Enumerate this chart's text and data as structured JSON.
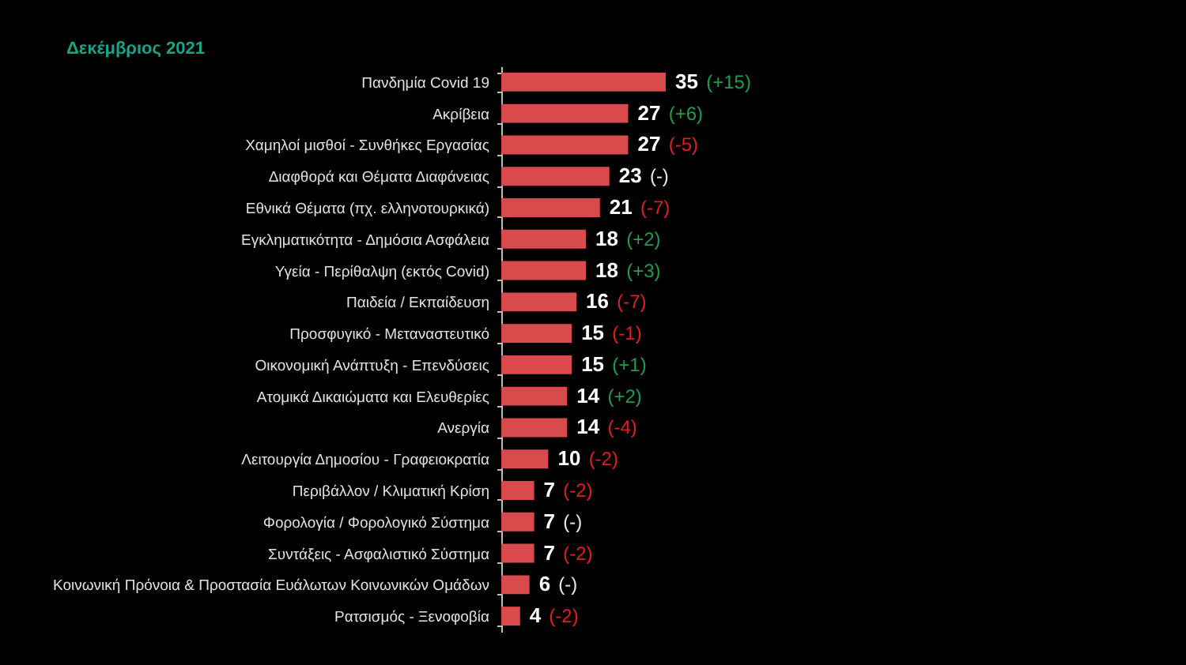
{
  "chart_data": {
    "type": "bar",
    "orientation": "horizontal",
    "title": "Δεκέμβριος 2021",
    "categories": [
      "Πανδημία Covid 19",
      "Ακρίβεια",
      "Χαμηλοί μισθοί - Συνθήκες Εργασίας",
      "Διαφθορά και Θέματα Διαφάνειας",
      "Εθνικά Θέματα (πχ. ελληνοτουρκικά)",
      "Εγκληματικότητα - Δημόσια Ασφάλεια",
      "Υγεία - Περίθαλψη (εκτός Covid)",
      "Παιδεία / Εκπαίδευση",
      "Προσφυγικό - Μεταναστευτικό",
      "Οικονομική Ανάπτυξη - Επενδύσεις",
      "Ατομικά Δικαιώματα και Ελευθερίες",
      "Ανεργία",
      "Λειτουργία Δημοσίου - Γραφειοκρατία",
      "Περιβάλλον / Κλιματική Κρίση",
      "Φορολογία / Φορολογικό Σύστημα",
      "Συντάξεις - Ασφαλιστικό Σύστημα",
      "Κοινωνική Πρόνοια & Προστασία Ευάλωτων Κοινωνικών Ομάδων",
      "Ρατσισμός - Ξενοφοβία"
    ],
    "values": [
      35,
      27,
      27,
      23,
      21,
      18,
      18,
      16,
      15,
      15,
      14,
      14,
      10,
      7,
      7,
      7,
      6,
      4
    ],
    "color": "#d94a4d",
    "data_labels": true,
    "tick_labels": "y",
    "annotations": [
      {
        "text": "(-2)",
        "x": 4,
        "y": "Ρατσισμός - Ξενοφοβία"
      },
      {
        "text": "(-)",
        "x": 6,
        "y": "Κοινωνική Πρόνοια & Προστασία Ευάλωτων Κοινωνικών Ομάδων"
      },
      {
        "text": "(-2)",
        "x": 7,
        "y": "Συντάξεις - Ασφαλιστικό Σύστημα"
      },
      {
        "text": "(-)",
        "x": 7,
        "y": "Φορολογία / Φορολογικό Σύστημα"
      },
      {
        "text": "(-2)",
        "x": 7,
        "y": "Περιβάλλον / Κλιματική Κρίση"
      },
      {
        "text": "(-2)",
        "x": 10,
        "y": "Λειτουργία Δημοσίου - Γραφειοκρατία"
      },
      {
        "text": "(-4)",
        "x": 14,
        "y": "Ανεργία"
      },
      {
        "text": "(+2)",
        "x": 14,
        "y": "Ατομικά Δικαιώματα και Ελευθερίες"
      },
      {
        "text": "(+1)",
        "x": 15,
        "y": "Οικονομική Ανάπτυξη - Επενδύσεις"
      },
      {
        "text": "(-1)",
        "x": 15,
        "y": "Προσφυγικό - Μεταναστευτικό"
      },
      {
        "text": "(-7)",
        "x": 16,
        "y": "Παιδεία / Εκπαίδευση"
      },
      {
        "text": "(+3)",
        "x": 18,
        "y": "Υγεία - Περίθαλψη (εκτός Covid)"
      },
      {
        "text": "(+2)",
        "x": 18,
        "y": "Εγκληματικότητα - Δημόσια Ασφάλεια"
      },
      {
        "text": "(-7)",
        "x": 21,
        "y": "Εθνικά Θέματα (πχ. ελληνοτουρκικά)"
      },
      {
        "text": "(-)",
        "x": 23,
        "y": "Διαφθορά και Θέματα Διαφάνειας"
      },
      {
        "text": "(-5)",
        "x": 27,
        "y": "Χαμηλοί μισθοί - Συνθήκες Εργασίας"
      },
      {
        "text": "(+6)",
        "x": 27,
        "y": "Ακρίβεια"
      },
      {
        "text": "(+15)",
        "x": 35,
        "y": "Πανδημία Covid 19"
      }
    ]
  }
}
